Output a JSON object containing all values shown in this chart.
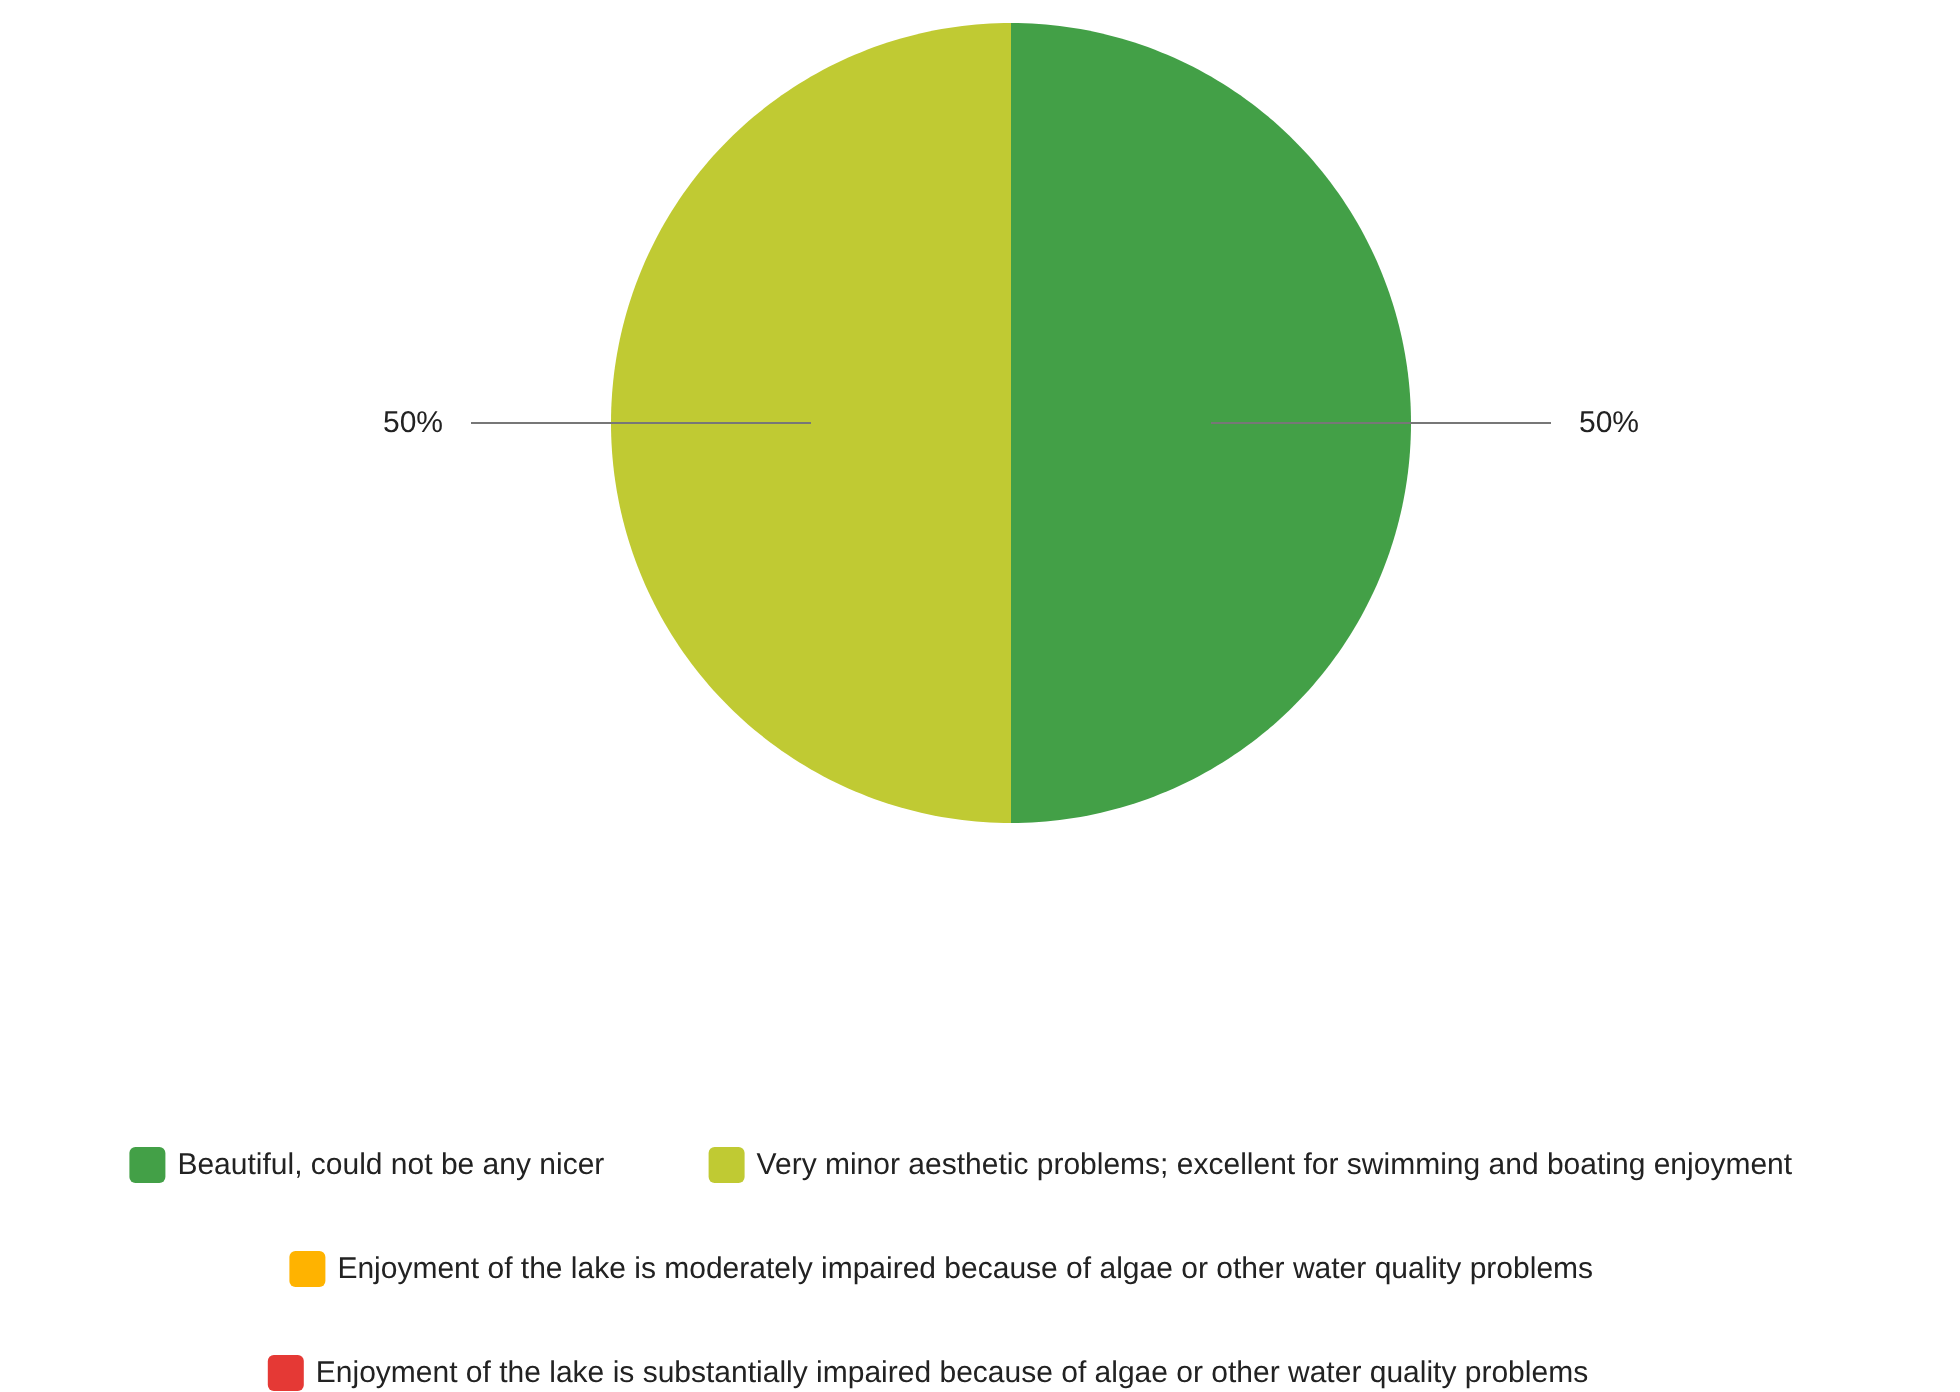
{
  "chart_data": {
    "type": "pie",
    "categories": [
      "Beautiful, could not be any nicer",
      "Very minor aesthetic problems; excellent for swimming and boating enjoyment",
      "Enjoyment of the lake is moderately impaired because of algae or other water quality problems",
      "Enjoyment of the lake is substantially impaired because of algae or other water quality problems"
    ],
    "values": [
      50,
      50,
      0,
      0
    ],
    "colors": [
      "#43a047",
      "#c0ca33",
      "#ffb300",
      "#e53935"
    ],
    "value_labels": [
      "50%",
      "50%",
      null,
      null
    ],
    "legend": "bottom"
  }
}
